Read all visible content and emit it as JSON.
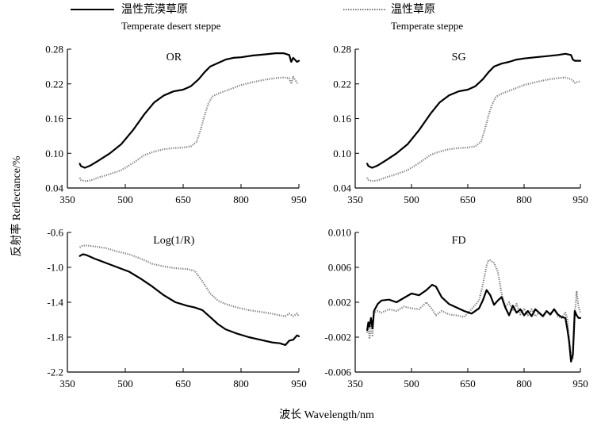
{
  "legend": [
    {
      "cn": "温性荒漠草原",
      "en": "Temperate desert steppe",
      "style": "solid",
      "color": "#000000"
    },
    {
      "cn": "温性草原",
      "en": "Temperate steppe",
      "style": "dotted",
      "color": "#7a7a7a"
    }
  ],
  "xlabel": "波长 Wavelength/nm",
  "ylabel": "反射率 Reflectance/%",
  "chart_data": [
    {
      "type": "line",
      "title": "OR",
      "xlim": [
        350,
        950
      ],
      "ylim": [
        0.04,
        0.28
      ],
      "xticks": [
        350,
        500,
        650,
        800,
        950
      ],
      "xtick_labels": [
        "350",
        "500",
        "650",
        "800",
        "950"
      ],
      "yticks": [
        0.04,
        0.1,
        0.16,
        0.22,
        0.28
      ],
      "ytick_labels": [
        "0.04",
        "0.10",
        "0.16",
        "0.22",
        "0.28"
      ],
      "series": [
        {
          "legend_index": 0,
          "style": "solid",
          "x": [
            382,
            385,
            395,
            410,
            430,
            460,
            490,
            520,
            550,
            575,
            600,
            625,
            650,
            670,
            690,
            705,
            720,
            740,
            760,
            780,
            800,
            830,
            860,
            890,
            910,
            925,
            930,
            935,
            945,
            950
          ],
          "y": [
            0.082,
            0.078,
            0.075,
            0.079,
            0.087,
            0.1,
            0.116,
            0.14,
            0.168,
            0.188,
            0.2,
            0.207,
            0.21,
            0.216,
            0.228,
            0.24,
            0.25,
            0.256,
            0.262,
            0.265,
            0.266,
            0.269,
            0.271,
            0.273,
            0.273,
            0.27,
            0.258,
            0.265,
            0.258,
            0.26
          ]
        },
        {
          "legend_index": 1,
          "style": "dotted",
          "x": [
            382,
            385,
            395,
            410,
            430,
            460,
            490,
            520,
            550,
            575,
            600,
            625,
            650,
            670,
            685,
            695,
            705,
            715,
            725,
            740,
            760,
            780,
            800,
            830,
            860,
            890,
            910,
            925,
            930,
            935,
            945,
            950
          ],
          "y": [
            0.058,
            0.054,
            0.052,
            0.053,
            0.058,
            0.064,
            0.071,
            0.083,
            0.097,
            0.103,
            0.107,
            0.109,
            0.11,
            0.112,
            0.12,
            0.14,
            0.165,
            0.185,
            0.198,
            0.203,
            0.208,
            0.213,
            0.218,
            0.223,
            0.227,
            0.23,
            0.231,
            0.23,
            0.22,
            0.232,
            0.222,
            0.222
          ]
        }
      ]
    },
    {
      "type": "line",
      "title": "SG",
      "xlim": [
        350,
        950
      ],
      "ylim": [
        0.04,
        0.28
      ],
      "xticks": [
        350,
        500,
        650,
        800,
        950
      ],
      "xtick_labels": [
        "350",
        "500",
        "650",
        "800",
        "950"
      ],
      "yticks": [
        0.04,
        0.1,
        0.16,
        0.22,
        0.28
      ],
      "ytick_labels": [
        "0.04",
        "0.10",
        "0.16",
        "0.22",
        "0.28"
      ],
      "series": [
        {
          "legend_index": 0,
          "style": "solid",
          "x": [
            382,
            385,
            395,
            410,
            430,
            460,
            490,
            520,
            550,
            575,
            600,
            625,
            650,
            670,
            690,
            705,
            720,
            740,
            760,
            780,
            800,
            830,
            860,
            890,
            910,
            925,
            930,
            935,
            945,
            950
          ],
          "y": [
            0.082,
            0.078,
            0.075,
            0.079,
            0.087,
            0.1,
            0.116,
            0.14,
            0.168,
            0.188,
            0.2,
            0.207,
            0.21,
            0.216,
            0.228,
            0.24,
            0.25,
            0.255,
            0.258,
            0.262,
            0.264,
            0.266,
            0.268,
            0.27,
            0.272,
            0.27,
            0.262,
            0.26,
            0.26,
            0.26
          ]
        },
        {
          "legend_index": 1,
          "style": "dotted",
          "x": [
            382,
            385,
            395,
            410,
            430,
            460,
            490,
            520,
            550,
            575,
            600,
            625,
            650,
            670,
            685,
            695,
            705,
            715,
            725,
            740,
            760,
            780,
            800,
            830,
            860,
            890,
            910,
            925,
            930,
            935,
            945,
            950
          ],
          "y": [
            0.058,
            0.054,
            0.052,
            0.053,
            0.058,
            0.064,
            0.071,
            0.083,
            0.097,
            0.103,
            0.107,
            0.109,
            0.11,
            0.112,
            0.12,
            0.14,
            0.165,
            0.185,
            0.198,
            0.203,
            0.208,
            0.213,
            0.218,
            0.223,
            0.227,
            0.23,
            0.231,
            0.228,
            0.226,
            0.222,
            0.224,
            0.224
          ]
        }
      ]
    },
    {
      "type": "line",
      "title": "Log(1/R)",
      "xlim": [
        350,
        950
      ],
      "ylim": [
        -2.2,
        -0.6
      ],
      "xticks": [
        350,
        500,
        650,
        800,
        950
      ],
      "xtick_labels": [
        "350",
        "500",
        "650",
        "800",
        "950"
      ],
      "yticks": [
        -2.2,
        -1.8,
        -1.4,
        -1.0,
        -0.6
      ],
      "ytick_labels": [
        "-2.2",
        "-1.8",
        "-1.4",
        "-1.0",
        "-0.6"
      ],
      "series": [
        {
          "legend_index": 0,
          "style": "solid",
          "x": [
            382,
            390,
            400,
            420,
            450,
            480,
            510,
            540,
            570,
            600,
            630,
            660,
            680,
            700,
            720,
            740,
            760,
            790,
            820,
            850,
            880,
            900,
            915,
            925,
            935,
            945,
            950
          ],
          "y": [
            -0.87,
            -0.85,
            -0.86,
            -0.9,
            -0.95,
            -1.0,
            -1.05,
            -1.13,
            -1.22,
            -1.32,
            -1.4,
            -1.44,
            -1.46,
            -1.49,
            -1.57,
            -1.65,
            -1.71,
            -1.76,
            -1.8,
            -1.83,
            -1.86,
            -1.87,
            -1.89,
            -1.84,
            -1.83,
            -1.78,
            -1.79
          ]
        },
        {
          "legend_index": 1,
          "style": "dotted",
          "x": [
            382,
            390,
            400,
            420,
            450,
            480,
            510,
            540,
            570,
            600,
            630,
            660,
            680,
            700,
            720,
            740,
            760,
            790,
            820,
            850,
            880,
            900,
            915,
            925,
            935,
            945,
            950
          ],
          "y": [
            -0.77,
            -0.75,
            -0.75,
            -0.76,
            -0.78,
            -0.82,
            -0.85,
            -0.9,
            -0.96,
            -0.99,
            -1.01,
            -1.02,
            -1.04,
            -1.16,
            -1.3,
            -1.38,
            -1.42,
            -1.46,
            -1.49,
            -1.51,
            -1.53,
            -1.55,
            -1.56,
            -1.53,
            -1.56,
            -1.53,
            -1.56
          ]
        }
      ]
    },
    {
      "type": "line",
      "title": "FD",
      "xlim": [
        350,
        950
      ],
      "ylim": [
        -0.006,
        0.01
      ],
      "xticks": [
        350,
        500,
        650,
        800,
        950
      ],
      "xtick_labels": [
        "350",
        "500",
        "650",
        "800",
        "950"
      ],
      "yticks": [
        -0.006,
        -0.002,
        0.002,
        0.006,
        0.01
      ],
      "ytick_labels": [
        "-0.006",
        "-0.002",
        "0.002",
        "0.006",
        "0.010"
      ],
      "series": [
        {
          "legend_index": 0,
          "style": "solid",
          "x": [
            382,
            385,
            388,
            392,
            396,
            400,
            410,
            420,
            440,
            460,
            480,
            500,
            520,
            540,
            555,
            565,
            580,
            600,
            620,
            640,
            660,
            680,
            690,
            700,
            710,
            720,
            730,
            740,
            750,
            760,
            770,
            780,
            790,
            800,
            810,
            820,
            830,
            840,
            850,
            860,
            870,
            880,
            890,
            900,
            910,
            915,
            920,
            925,
            930,
            935,
            940,
            945,
            950
          ],
          "y": [
            -0.0012,
            -0.0003,
            -0.0008,
            0.0002,
            -0.001,
            0.001,
            0.0018,
            0.0022,
            0.0023,
            0.002,
            0.0025,
            0.003,
            0.0028,
            0.0034,
            0.004,
            0.0038,
            0.0026,
            0.0018,
            0.0014,
            0.001,
            0.0007,
            0.0013,
            0.0022,
            0.0034,
            0.0028,
            0.0017,
            0.0022,
            0.0026,
            0.0014,
            0.0005,
            0.0016,
            0.0008,
            0.0012,
            0.0005,
            0.001,
            0.0004,
            0.0012,
            0.0008,
            0.0004,
            0.001,
            0.0006,
            0.0012,
            0.0006,
            0.0003,
            0.0002,
            -0.001,
            -0.0025,
            -0.0048,
            -0.004,
            0.001,
            0.0005,
            0.0002,
            0.0002
          ]
        },
        {
          "legend_index": 1,
          "style": "dotted",
          "x": [
            382,
            385,
            388,
            392,
            396,
            400,
            410,
            420,
            440,
            460,
            480,
            500,
            520,
            540,
            555,
            565,
            580,
            600,
            620,
            640,
            660,
            680,
            690,
            700,
            705,
            710,
            720,
            730,
            740,
            750,
            760,
            770,
            780,
            790,
            800,
            810,
            820,
            830,
            840,
            850,
            860,
            870,
            880,
            890,
            900,
            910,
            915,
            920,
            925,
            930,
            935,
            940,
            945,
            950
          ],
          "y": [
            -0.0015,
            -0.0005,
            -0.0022,
            -0.0008,
            -0.0018,
            0.0008,
            0.001,
            0.0008,
            0.0012,
            0.001,
            0.0015,
            0.0013,
            0.0012,
            0.002,
            0.0012,
            0.0005,
            0.001,
            0.0006,
            0.0005,
            0.0003,
            0.0012,
            0.0022,
            0.004,
            0.0062,
            0.0068,
            0.0068,
            0.0065,
            0.0055,
            0.003,
            0.0015,
            0.002,
            0.001,
            0.0018,
            0.0006,
            0.0013,
            0.0005,
            0.0012,
            0.0004,
            0.0008,
            0.0003,
            0.001,
            0.0005,
            0.0012,
            0.0004,
            0.0002,
            0.0008,
            0.0002,
            -0.002,
            -0.0042,
            -0.0044,
            0.0005,
            0.0032,
            0.0015,
            0.0008
          ]
        }
      ]
    }
  ]
}
